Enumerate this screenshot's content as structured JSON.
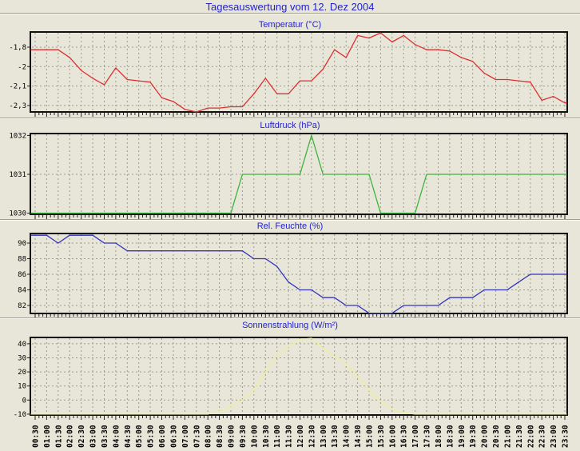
{
  "header": {
    "title": "Tagesauswertung vom 12. Dez 2004"
  },
  "colors": {
    "background": "#e8e6d9",
    "title_text": "#2222cc",
    "grid": "#9b9b8b",
    "axis_frame": "#111111",
    "temperature_line": "#dc3030",
    "pressure_line": "#3cb43c",
    "humidity_line": "#3434bb",
    "solar_line": "#eeeea0"
  },
  "chart_data": {
    "type": "line",
    "x_categories": [
      "00:30",
      "01:00",
      "01:30",
      "02:00",
      "02:30",
      "03:00",
      "03:30",
      "04:00",
      "04:30",
      "05:00",
      "05:30",
      "06:00",
      "06:30",
      "07:00",
      "07:30",
      "08:00",
      "08:30",
      "09:00",
      "09:30",
      "10:00",
      "10:30",
      "11:00",
      "11:30",
      "12:00",
      "12:30",
      "13:00",
      "13:30",
      "14:00",
      "14:30",
      "15:00",
      "15:30",
      "16:00",
      "16:30",
      "17:00",
      "17:30",
      "18:00",
      "18:30",
      "19:00",
      "19:30",
      "20:00",
      "20:30",
      "21:00",
      "21:30",
      "22:00",
      "22:30",
      "23:00",
      "23:30"
    ],
    "legend": "none",
    "grid": "on",
    "charts": [
      {
        "title": "Temperatur (°C)",
        "color": "#dc3030",
        "ylim": [
          -2.3,
          -1.683
        ],
        "y_ticks": [
          {
            "v": -1.8,
            "label": "-1,8"
          },
          {
            "v": -1.95,
            "label": "-2"
          },
          {
            "v": -2.1,
            "label": "-2,1"
          },
          {
            "v": -2.25,
            "label": "-2,3"
          }
        ],
        "values": [
          -1.82,
          -1.82,
          -1.82,
          -1.88,
          -1.98,
          -2.04,
          -2.09,
          -1.96,
          -2.05,
          -2.06,
          -2.07,
          -2.19,
          -2.22,
          -2.28,
          -2.3,
          -2.27,
          -2.27,
          -2.26,
          -2.26,
          -2.16,
          -2.04,
          -2.16,
          -2.16,
          -2.06,
          -2.06,
          -1.97,
          -1.82,
          -1.88,
          -1.71,
          -1.73,
          -1.69,
          -1.76,
          -1.71,
          -1.78,
          -1.82,
          -1.82,
          -1.83,
          -1.88,
          -1.91,
          -2.0,
          -2.05,
          -2.05,
          -2.06,
          -2.07,
          -2.21,
          -2.18,
          -2.23
        ]
      },
      {
        "title": "Luftdruck (hPa)",
        "color": "#3cb43c",
        "ylim": [
          1029.97,
          1032.05
        ],
        "y_ticks": [
          {
            "v": 1032,
            "label": "1032"
          },
          {
            "v": 1031,
            "label": "1031"
          },
          {
            "v": 1030,
            "label": "1030"
          }
        ],
        "values": [
          1030,
          1030,
          1030,
          1030,
          1030,
          1030,
          1030,
          1030,
          1030,
          1030,
          1030,
          1030,
          1030,
          1030,
          1030,
          1030,
          1030,
          1030,
          1031,
          1031,
          1031,
          1031,
          1031,
          1031,
          1032,
          1031,
          1031,
          1031,
          1031,
          1031,
          1030,
          1030,
          1030,
          1030,
          1031,
          1031,
          1031,
          1031,
          1031,
          1031,
          1031,
          1031,
          1031,
          1031,
          1031,
          1031,
          1031
        ]
      },
      {
        "title": "Rel. Feuchte (%)",
        "color": "#3434bb",
        "ylim": [
          80.97,
          91.23
        ],
        "y_ticks": [
          {
            "v": 90,
            "label": "90"
          },
          {
            "v": 88,
            "label": "88"
          },
          {
            "v": 86,
            "label": "86"
          },
          {
            "v": 84,
            "label": "84"
          },
          {
            "v": 82,
            "label": "82"
          }
        ],
        "values": [
          91,
          91,
          90,
          91,
          91,
          91,
          90,
          90,
          89,
          89,
          89,
          89,
          89,
          89,
          89,
          89,
          89,
          89,
          89,
          88,
          88,
          87,
          85,
          84,
          84,
          83,
          83,
          82,
          82,
          81,
          81,
          81,
          82,
          82,
          82,
          82,
          83,
          83,
          83,
          84,
          84,
          84,
          85,
          86,
          86,
          86,
          86
        ]
      },
      {
        "title": "Sonnenstrahlung (W/m²)",
        "color": "#eeeea0",
        "ylim": [
          -10.6,
          44.5
        ],
        "y_ticks": [
          {
            "v": 40,
            "label": "40"
          },
          {
            "v": 30,
            "label": "30"
          },
          {
            "v": 20,
            "label": "20"
          },
          {
            "v": 10,
            "label": "10"
          },
          {
            "v": 0,
            "label": "0"
          },
          {
            "v": -10,
            "label": "-10"
          }
        ],
        "values": [
          -10,
          -10,
          -10,
          -10,
          -10,
          -10,
          -10,
          -10,
          -10,
          -10,
          -10,
          -10,
          -10,
          -10,
          -10,
          -10,
          -8,
          -5,
          0,
          7,
          20,
          32,
          38,
          43,
          44,
          37,
          31,
          26,
          17,
          7,
          -1,
          -6,
          -9,
          -10,
          -10,
          -10,
          -10,
          -10,
          -10,
          -10,
          -10,
          -10,
          -10,
          -10,
          -10,
          -10,
          -10
        ]
      }
    ]
  }
}
